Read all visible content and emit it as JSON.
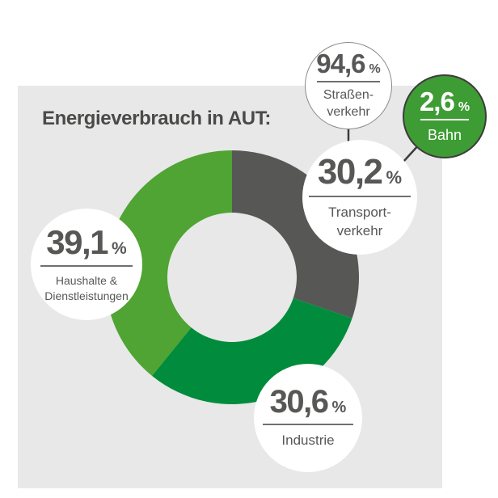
{
  "title": "Energieverbrauch in AUT:",
  "colors": {
    "panel_background": "#E8E8E8",
    "page_background": "#FFFFFF",
    "title_text": "#4A4A49",
    "callout_text": "#575756",
    "divider_gray": "#706F6F",
    "connector_dark": "#3C3C3B",
    "slice_transport_gray": "#575756",
    "slice_industrie_dark_green": "#008C3C",
    "slice_haushalte_light_green": "#4FA433",
    "bahn_bubble_green": "#3E9C34",
    "bahn_bubble_border": "#3C3C3B",
    "strassen_bubble_border": "#8A8A89"
  },
  "chart_data": {
    "type": "pie",
    "subtype": "donut",
    "title": "Energieverbrauch in AUT:",
    "unit": "%",
    "start_angle_deg_from_12_clockwise": 0,
    "slices": [
      {
        "label": "Transportverkehr",
        "value": 30.2,
        "color": "#575756"
      },
      {
        "label": "Industrie",
        "value": 30.6,
        "color": "#008C3C"
      },
      {
        "label": "Haushalte & Dienstleistungen",
        "value": 39.1,
        "color": "#4FA433"
      }
    ],
    "breakdown_of_transportverkehr": [
      {
        "label": "Straßenverkehr",
        "value": 94.6
      },
      {
        "label": "Bahn",
        "value": 2.6
      }
    ],
    "legend_position": "callout-bubbles",
    "grid": false
  },
  "callouts": {
    "haushalte": {
      "value": "39,1",
      "unit": "%",
      "label_line1": "Haushalte &",
      "label_line2": "Dienstleistungen"
    },
    "transport": {
      "value": "30,2",
      "unit": "%",
      "label_line1": "Transport-",
      "label_line2": "verkehr"
    },
    "industrie": {
      "value": "30,6",
      "unit": "%",
      "label_line1": "Industrie",
      "label_line2": ""
    },
    "strassen": {
      "value": "94,6",
      "unit": "%",
      "label_line1": "Straßen-",
      "label_line2": "verkehr"
    },
    "bahn": {
      "value": "2,6",
      "unit": "%",
      "label_line1": "Bahn",
      "label_line2": ""
    }
  }
}
